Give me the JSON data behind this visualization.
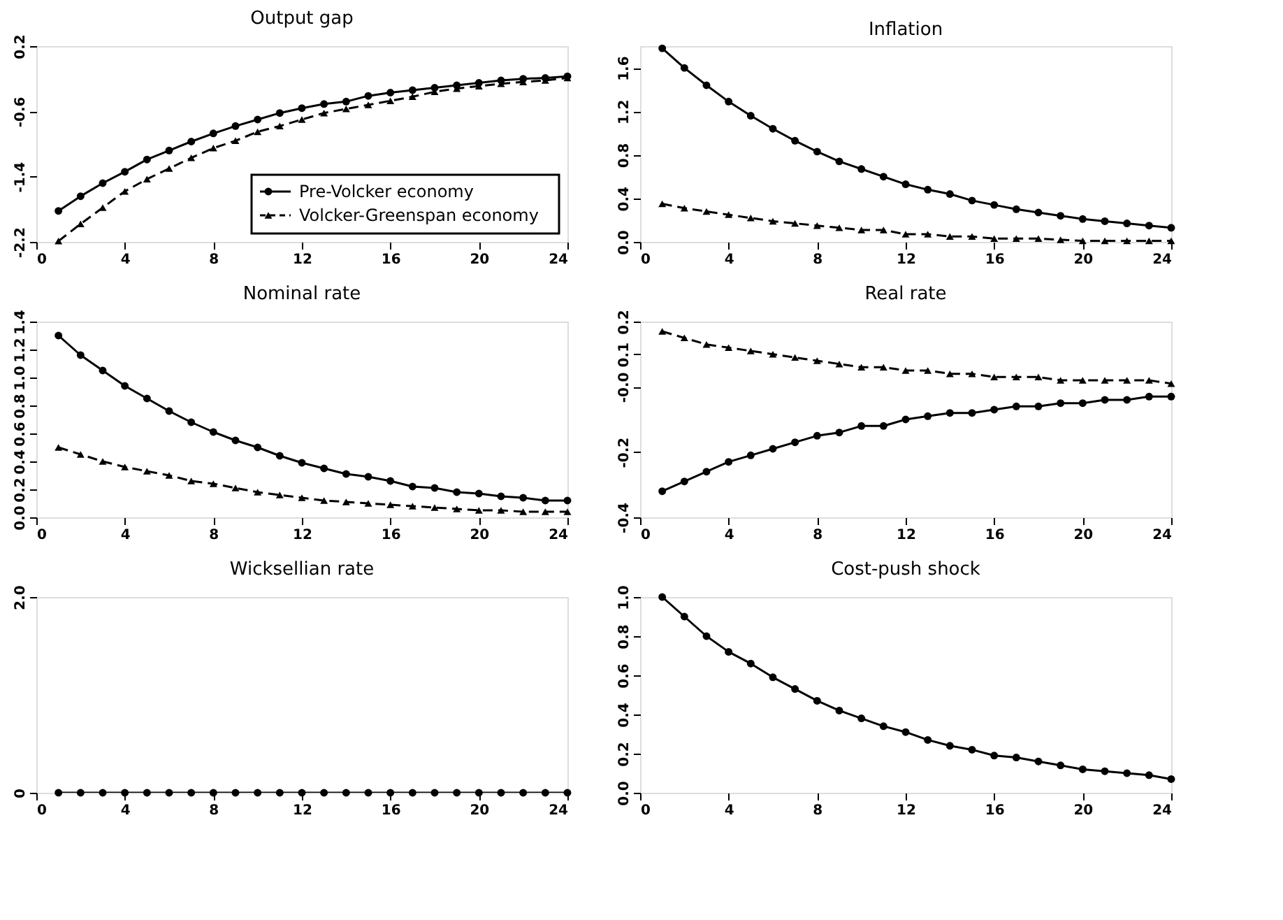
{
  "chart_data": [
    {
      "type": "line",
      "title": "Output gap",
      "x": [
        1,
        2,
        3,
        4,
        5,
        6,
        7,
        8,
        9,
        10,
        11,
        12,
        13,
        14,
        15,
        16,
        17,
        18,
        19,
        20,
        21,
        22,
        23,
        24
      ],
      "xlim": [
        0,
        24
      ],
      "xticks": [
        0,
        4,
        8,
        12,
        16,
        20,
        24
      ],
      "ylim": [
        -2.2,
        0.2
      ],
      "yticks": [
        -2.2,
        -1.4,
        -0.6,
        0.2
      ],
      "grid": false,
      "legend": "bottom right",
      "series": [
        {
          "name": "Pre-Volcker economy",
          "color": "#000000",
          "marker": "circle",
          "line_style": "solid",
          "values": [
            -1.82,
            -1.64,
            -1.48,
            -1.34,
            -1.19,
            -1.08,
            -0.97,
            -0.87,
            -0.78,
            -0.7,
            -0.62,
            -0.56,
            -0.51,
            -0.48,
            -0.41,
            -0.37,
            -0.34,
            -0.31,
            -0.28,
            -0.25,
            -0.22,
            -0.2,
            -0.19,
            -0.17
          ]
        },
        {
          "name": "Volcker-Greenspan economy",
          "color": "#000000",
          "marker": "triangle",
          "line_style": "dashed",
          "values": [
            -2.19,
            -1.98,
            -1.78,
            -1.58,
            -1.43,
            -1.3,
            -1.17,
            -1.05,
            -0.96,
            -0.85,
            -0.78,
            -0.7,
            -0.62,
            -0.57,
            -0.52,
            -0.47,
            -0.42,
            -0.36,
            -0.32,
            -0.29,
            -0.26,
            -0.24,
            -0.22,
            -0.19
          ]
        }
      ]
    },
    {
      "type": "line",
      "title": "Inflation",
      "x": [
        1,
        2,
        3,
        4,
        5,
        6,
        7,
        8,
        9,
        10,
        11,
        12,
        13,
        14,
        15,
        16,
        17,
        18,
        19,
        20,
        21,
        22,
        23,
        24
      ],
      "xlim": [
        0,
        24
      ],
      "xticks": [
        0,
        4,
        8,
        12,
        16,
        20,
        24
      ],
      "ylim": [
        0,
        1.8
      ],
      "yticks": [
        {
          "value": 0,
          "label": "0.0"
        },
        0.4,
        0.8,
        1.2,
        1.6
      ],
      "grid": false,
      "series": [
        {
          "color": "#000000",
          "marker": "circle",
          "line_style": "solid",
          "values": [
            1.78,
            1.6,
            1.44,
            1.29,
            1.16,
            1.04,
            0.93,
            0.83,
            0.74,
            0.67,
            0.6,
            0.53,
            0.48,
            0.44,
            0.38,
            0.34,
            0.3,
            0.27,
            0.24,
            0.21,
            0.19,
            0.17,
            0.15,
            0.13
          ]
        },
        {
          "color": "#000000",
          "marker": "triangle",
          "line_style": "dashed",
          "values": [
            0.35,
            0.31,
            0.28,
            0.25,
            0.22,
            0.19,
            0.17,
            0.15,
            0.13,
            0.11,
            0.11,
            0.07,
            0.07,
            0.05,
            0.05,
            0.03,
            0.03,
            0.03,
            0.02,
            0.01,
            0.01,
            0.01,
            0.01,
            0.01
          ]
        }
      ]
    },
    {
      "type": "line",
      "title": "Nominal rate",
      "x": [
        1,
        2,
        3,
        4,
        5,
        6,
        7,
        8,
        9,
        10,
        11,
        12,
        13,
        14,
        15,
        16,
        17,
        18,
        19,
        20,
        21,
        22,
        23,
        24
      ],
      "xlim": [
        0,
        24
      ],
      "xticks": [
        0,
        4,
        8,
        12,
        16,
        20,
        24
      ],
      "ylim": [
        0,
        1.4
      ],
      "yticks": [
        {
          "value": 0,
          "label": "0.0"
        },
        0.2,
        0.4,
        0.6,
        0.8,
        {
          "value": 1,
          "label": "1.0"
        },
        1.2,
        1.4
      ],
      "grid": false,
      "series": [
        {
          "color": "#000000",
          "marker": "circle",
          "line_style": "solid",
          "values": [
            1.3,
            1.16,
            1.05,
            0.94,
            0.85,
            0.76,
            0.68,
            0.61,
            0.55,
            0.5,
            0.44,
            0.39,
            0.35,
            0.31,
            0.29,
            0.26,
            0.22,
            0.21,
            0.18,
            0.17,
            0.15,
            0.14,
            0.12,
            0.12
          ]
        },
        {
          "color": "#000000",
          "marker": "triangle",
          "line_style": "dashed",
          "values": [
            0.5,
            0.45,
            0.4,
            0.36,
            0.33,
            0.3,
            0.26,
            0.24,
            0.21,
            0.18,
            0.16,
            0.14,
            0.12,
            0.11,
            0.1,
            0.09,
            0.08,
            0.07,
            0.06,
            0.05,
            0.05,
            0.04,
            0.04,
            0.04
          ]
        }
      ]
    },
    {
      "type": "line",
      "title": "Real rate",
      "x": [
        1,
        2,
        3,
        4,
        5,
        6,
        7,
        8,
        9,
        10,
        11,
        12,
        13,
        14,
        15,
        16,
        17,
        18,
        19,
        20,
        21,
        22,
        23,
        24
      ],
      "xlim": [
        0,
        24
      ],
      "xticks": [
        0,
        4,
        8,
        12,
        16,
        20,
        24
      ],
      "ylim": [
        -0.4,
        0.2
      ],
      "yticks": [
        -0.4,
        -0.2,
        {
          "value": 0,
          "label": "-0.0"
        },
        0.1,
        0.2
      ],
      "grid": false,
      "series": [
        {
          "color": "#000000",
          "marker": "circle",
          "line_style": "solid",
          "values": [
            -0.32,
            -0.29,
            -0.26,
            -0.23,
            -0.21,
            -0.19,
            -0.17,
            -0.15,
            -0.14,
            -0.12,
            -0.12,
            -0.1,
            -0.09,
            -0.08,
            -0.08,
            -0.07,
            -0.06,
            -0.06,
            -0.05,
            -0.05,
            -0.04,
            -0.04,
            -0.03,
            -0.03
          ]
        },
        {
          "color": "#000000",
          "marker": "triangle",
          "line_style": "dashed",
          "values": [
            0.17,
            0.15,
            0.13,
            0.12,
            0.11,
            0.1,
            0.09,
            0.08,
            0.07,
            0.06,
            0.06,
            0.05,
            0.05,
            0.04,
            0.04,
            0.03,
            0.03,
            0.03,
            0.02,
            0.02,
            0.02,
            0.02,
            0.02,
            0.01
          ]
        }
      ]
    },
    {
      "type": "line",
      "title": "Wicksellian rate",
      "x": [
        1,
        2,
        3,
        4,
        5,
        6,
        7,
        8,
        9,
        10,
        11,
        12,
        13,
        14,
        15,
        16,
        17,
        18,
        19,
        20,
        21,
        22,
        23,
        24
      ],
      "xlim": [
        0,
        24
      ],
      "xticks": [
        0,
        4,
        8,
        12,
        16,
        20,
        24
      ],
      "ylim": [
        0,
        2
      ],
      "yticks": [
        0,
        {
          "value": 2,
          "label": "2.0"
        }
      ],
      "grid": false,
      "series": [
        {
          "color": "#000000",
          "marker": "circle",
          "line_style": "solid",
          "values": [
            0,
            0,
            0,
            0,
            0,
            0,
            0,
            0,
            0,
            0,
            0,
            0,
            0,
            0,
            0,
            0,
            0,
            0,
            0,
            0,
            0,
            0,
            0,
            0
          ]
        }
      ]
    },
    {
      "type": "line",
      "title": "Cost-push shock",
      "x": [
        1,
        2,
        3,
        4,
        5,
        6,
        7,
        8,
        9,
        10,
        11,
        12,
        13,
        14,
        15,
        16,
        17,
        18,
        19,
        20,
        21,
        22,
        23,
        24
      ],
      "xlim": [
        0,
        24
      ],
      "xticks": [
        0,
        4,
        8,
        12,
        16,
        20,
        24
      ],
      "ylim": [
        0,
        1
      ],
      "yticks": [
        {
          "value": 0,
          "label": "0.0"
        },
        0.2,
        0.4,
        0.6,
        0.8,
        {
          "value": 1,
          "label": "1.0"
        }
      ],
      "grid": false,
      "series": [
        {
          "color": "#000000",
          "marker": "circle",
          "line_style": "solid",
          "values": [
            1.0,
            0.9,
            0.8,
            0.72,
            0.66,
            0.59,
            0.53,
            0.47,
            0.42,
            0.38,
            0.34,
            0.31,
            0.27,
            0.24,
            0.22,
            0.19,
            0.18,
            0.16,
            0.14,
            0.12,
            0.11,
            0.1,
            0.09,
            0.07
          ]
        }
      ]
    }
  ]
}
